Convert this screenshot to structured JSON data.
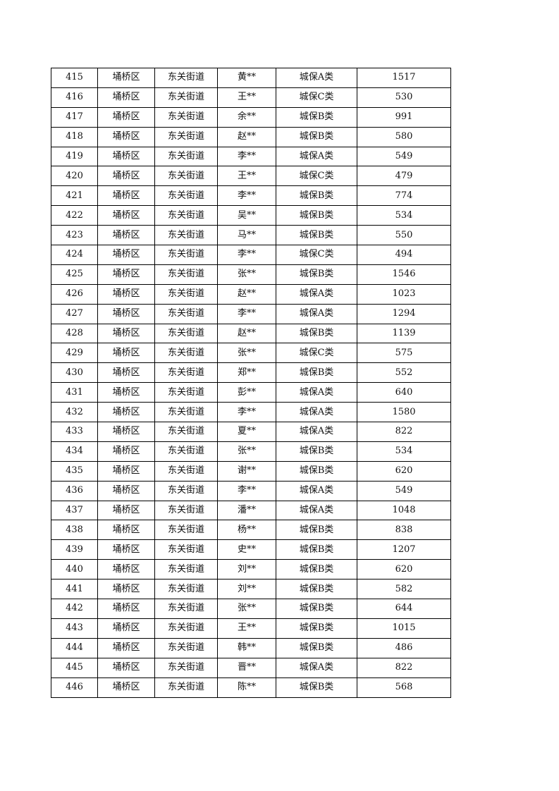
{
  "table": {
    "rows": [
      [
        "415",
        "埇桥区",
        "东关街道",
        "黄**",
        "城保A类",
        "1517"
      ],
      [
        "416",
        "埇桥区",
        "东关街道",
        "王**",
        "城保C类",
        "530"
      ],
      [
        "417",
        "埇桥区",
        "东关街道",
        "余**",
        "城保B类",
        "991"
      ],
      [
        "418",
        "埇桥区",
        "东关街道",
        "赵**",
        "城保B类",
        "580"
      ],
      [
        "419",
        "埇桥区",
        "东关街道",
        "李**",
        "城保A类",
        "549"
      ],
      [
        "420",
        "埇桥区",
        "东关街道",
        "王**",
        "城保C类",
        "479"
      ],
      [
        "421",
        "埇桥区",
        "东关街道",
        "李**",
        "城保B类",
        "774"
      ],
      [
        "422",
        "埇桥区",
        "东关街道",
        "吴**",
        "城保B类",
        "534"
      ],
      [
        "423",
        "埇桥区",
        "东关街道",
        "马**",
        "城保B类",
        "550"
      ],
      [
        "424",
        "埇桥区",
        "东关街道",
        "李**",
        "城保C类",
        "494"
      ],
      [
        "425",
        "埇桥区",
        "东关街道",
        "张**",
        "城保B类",
        "1546"
      ],
      [
        "426",
        "埇桥区",
        "东关街道",
        "赵**",
        "城保A类",
        "1023"
      ],
      [
        "427",
        "埇桥区",
        "东关街道",
        "李**",
        "城保A类",
        "1294"
      ],
      [
        "428",
        "埇桥区",
        "东关街道",
        "赵**",
        "城保B类",
        "1139"
      ],
      [
        "429",
        "埇桥区",
        "东关街道",
        "张**",
        "城保C类",
        "575"
      ],
      [
        "430",
        "埇桥区",
        "东关街道",
        "郑**",
        "城保B类",
        "552"
      ],
      [
        "431",
        "埇桥区",
        "东关街道",
        "彭**",
        "城保A类",
        "640"
      ],
      [
        "432",
        "埇桥区",
        "东关街道",
        "李**",
        "城保A类",
        "1580"
      ],
      [
        "433",
        "埇桥区",
        "东关街道",
        "夏**",
        "城保A类",
        "822"
      ],
      [
        "434",
        "埇桥区",
        "东关街道",
        "张**",
        "城保B类",
        "534"
      ],
      [
        "435",
        "埇桥区",
        "东关街道",
        "谢**",
        "城保B类",
        "620"
      ],
      [
        "436",
        "埇桥区",
        "东关街道",
        "李**",
        "城保A类",
        "549"
      ],
      [
        "437",
        "埇桥区",
        "东关街道",
        "潘**",
        "城保A类",
        "1048"
      ],
      [
        "438",
        "埇桥区",
        "东关街道",
        "杨**",
        "城保B类",
        "838"
      ],
      [
        "439",
        "埇桥区",
        "东关街道",
        "史**",
        "城保B类",
        "1207"
      ],
      [
        "440",
        "埇桥区",
        "东关街道",
        "刘**",
        "城保B类",
        "620"
      ],
      [
        "441",
        "埇桥区",
        "东关街道",
        "刘**",
        "城保B类",
        "582"
      ],
      [
        "442",
        "埇桥区",
        "东关街道",
        "张**",
        "城保B类",
        "644"
      ],
      [
        "443",
        "埇桥区",
        "东关街道",
        "王**",
        "城保B类",
        "1015"
      ],
      [
        "444",
        "埇桥区",
        "东关街道",
        "韩**",
        "城保B类",
        "486"
      ],
      [
        "445",
        "埇桥区",
        "东关街道",
        "晋**",
        "城保A类",
        "822"
      ],
      [
        "446",
        "埇桥区",
        "东关街道",
        "陈**",
        "城保B类",
        "568"
      ]
    ]
  }
}
